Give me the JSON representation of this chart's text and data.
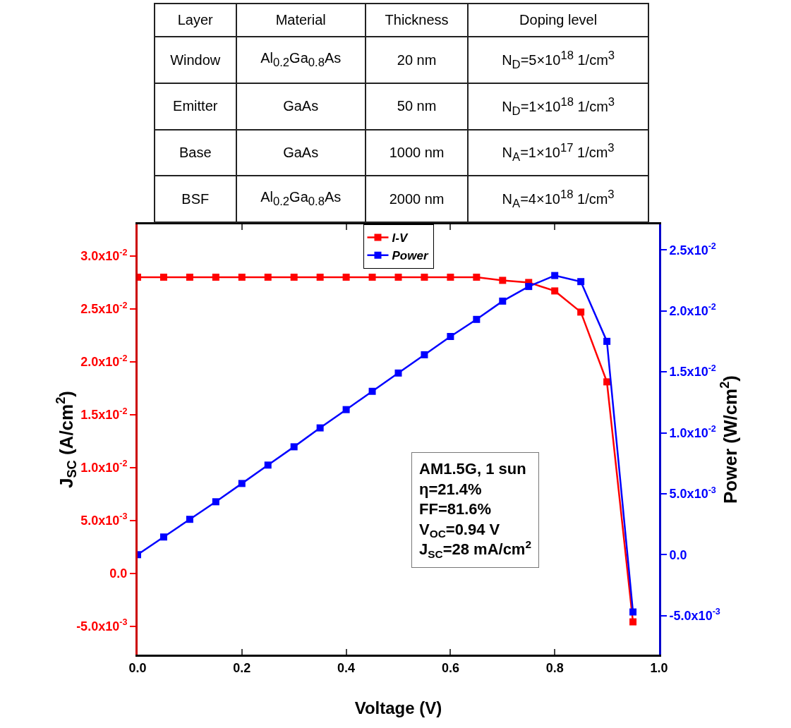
{
  "chart_data": [
    {
      "type": "other",
      "categories": [
        "Layer",
        "Material",
        "Thickness",
        "Doping level"
      ],
      "y_categories": [
        "Window",
        "Emitter",
        "Base",
        "BSF"
      ],
      "cell_labels": [
        [
          "Al$_{0.2}$Ga$_{0.8}$As",
          "20 nm",
          "N$_{D}$=5×10$^{18}$ 1/cm$^{3}$"
        ],
        [
          "GaAs",
          "50 nm",
          "N$_{D}$=1×10$^{18}$ 1/cm$^{3}$"
        ],
        [
          "GaAs",
          "1000 nm",
          "N$_{A}$=1×10$^{17}$ 1/cm$^{3}$"
        ],
        [
          "Al$_{0.2}$Ga$_{0.8}$As",
          "2000 nm",
          "N$_{A}$=4×10$^{18}$ 1/cm$^{3}$"
        ]
      ]
    },
    {
      "type": "line",
      "xlabel": "Voltage (V)",
      "ylabel": "J$_{SC}$ (A/cm$^{2}$)",
      "y2label": "Power (W/cm$^{2}$)",
      "x": [
        0,
        0.05,
        0.1,
        0.15,
        0.2,
        0.25,
        0.3,
        0.35,
        0.4,
        0.45,
        0.5,
        0.55,
        0.6,
        0.65,
        0.7,
        0.75,
        0.8,
        0.85,
        0.9,
        0.95
      ],
      "series": [
        {
          "name": "I-V",
          "color": "#ff0000",
          "values": [
            0.028,
            0.028,
            0.028,
            0.028,
            0.028,
            0.028,
            0.028,
            0.028,
            0.028,
            0.028,
            0.028,
            0.028,
            0.028,
            0.028,
            0.0277,
            0.0275,
            0.0267,
            0.0247,
            0.0181,
            -0.0046
          ]
        },
        {
          "name": "Power",
          "color": "#0000ff",
          "axis": "y2",
          "values": [
            0,
            0.00145,
            0.0029,
            0.00434,
            0.00584,
            0.00735,
            0.00885,
            0.0104,
            0.0119,
            0.0134,
            0.0149,
            0.0164,
            0.0179,
            0.0193,
            0.0208,
            0.022,
            0.0229,
            0.0224,
            0.0175,
            -0.0047
          ]
        }
      ],
      "xlim": [
        0,
        1
      ],
      "xticks": [
        {
          "value": 0,
          "label": "0.0"
        },
        0.2,
        0.4,
        0.6,
        0.8,
        {
          "value": 1,
          "label": "1.0"
        }
      ],
      "ylim": [
        -0.0077,
        0.033
      ],
      "yticks": [
        {
          "value": -0.005,
          "label": "-5.0x10$^{-3}$"
        },
        {
          "value": 0,
          "label": "0.0"
        },
        {
          "value": 0.005,
          "label": "5.0x10$^{-3}$"
        },
        {
          "value": 0.01,
          "label": "1.0x10$^{-2}$"
        },
        {
          "value": 0.015,
          "label": "1.5x10$^{-2}$"
        },
        {
          "value": 0.02,
          "label": "2.0x10$^{-2}$"
        },
        {
          "value": 0.025,
          "label": "2.5x10$^{-2}$"
        },
        {
          "value": 0.03,
          "label": "3.0x10$^{-2}$"
        }
      ],
      "y2lim": [
        -0.0082,
        0.0271
      ],
      "y2ticks": [
        {
          "value": -0.005,
          "label": "-5.0x10$^{-3}$"
        },
        {
          "value": 0,
          "label": "0.0"
        },
        {
          "value": 0.005,
          "label": "5.0x10$^{-3}$"
        },
        {
          "value": 0.01,
          "label": "1.0x10$^{-2}$"
        },
        {
          "value": 0.015,
          "label": "1.5x10$^{-2}$"
        },
        {
          "value": 0.02,
          "label": "2.0x10$^{-2}$"
        },
        {
          "value": 0.025,
          "label": "2.5x10$^{-2}$"
        }
      ],
      "marker": "square",
      "legend": "top",
      "grid": false,
      "annotations": [
        "AM1.5G, 1 sun",
        "η=21.4%",
        "FF=81.6%",
        "V$_{OC}$=0.94 V",
        "J$_{SC}$=28 mA/cm$^{2}$"
      ]
    }
  ]
}
